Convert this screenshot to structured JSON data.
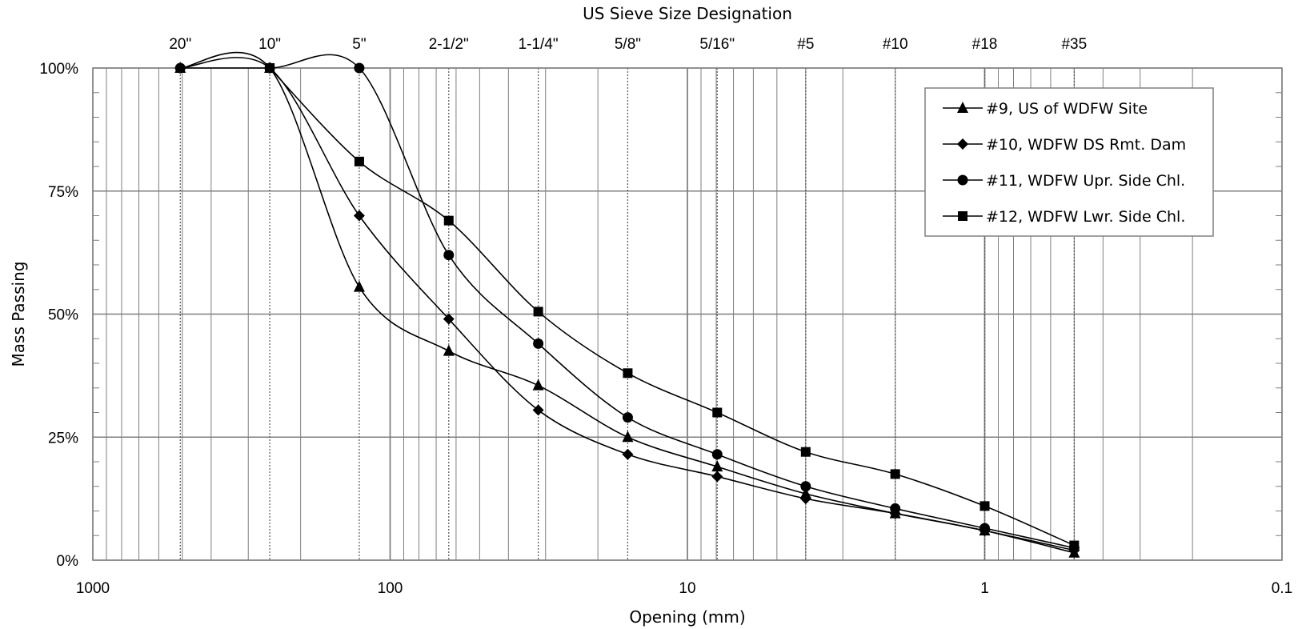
{
  "chart_data": {
    "type": "line",
    "x_scale": "log",
    "x_reversed": true,
    "xlim": [
      1000,
      0.1
    ],
    "ylim": [
      0,
      100
    ],
    "xlabel": "Opening (mm)",
    "ylabel": "Mass Passing",
    "x2label": "US Sieve Size Designation",
    "x_ticks": [
      {
        "value": 1000,
        "label": "1000"
      },
      {
        "value": 100,
        "label": "100"
      },
      {
        "value": 10,
        "label": "10"
      },
      {
        "value": 1,
        "label": "1"
      },
      {
        "value": 0.1,
        "label": "0.1"
      }
    ],
    "y_ticks": [
      {
        "value": 0,
        "label": "0%"
      },
      {
        "value": 25,
        "label": "25%"
      },
      {
        "value": 50,
        "label": "50%"
      },
      {
        "value": 75,
        "label": "75%"
      },
      {
        "value": 100,
        "label": "100%"
      }
    ],
    "sieves": [
      {
        "label": "20\"",
        "opening": 508
      },
      {
        "label": "10\"",
        "opening": 254
      },
      {
        "label": "5\"",
        "opening": 127
      },
      {
        "label": "2-1/2\"",
        "opening": 63.5
      },
      {
        "label": "1-1/4\"",
        "opening": 31.75
      },
      {
        "label": "5/8\"",
        "opening": 15.875
      },
      {
        "label": "5/16\"",
        "opening": 7.9375
      },
      {
        "label": "#5",
        "opening": 4
      },
      {
        "label": "#10",
        "opening": 2
      },
      {
        "label": "#18",
        "opening": 1
      },
      {
        "label": "#35",
        "opening": 0.5
      }
    ],
    "grid": true,
    "legend_position": "top-right",
    "series": [
      {
        "name": "#9, US of WDFW Site",
        "marker": "triangle",
        "x": [
          508,
          254,
          127,
          63.5,
          31.75,
          15.875,
          7.9375,
          4,
          2,
          1,
          0.5
        ],
        "y": [
          100,
          100,
          55.5,
          42.5,
          35.5,
          25,
          19,
          13.5,
          9.5,
          6,
          1.5
        ]
      },
      {
        "name": "#10, WDFW DS Rmt. Dam",
        "marker": "diamond",
        "x": [
          508,
          254,
          127,
          63.5,
          31.75,
          15.875,
          7.9375,
          4,
          2,
          1,
          0.5
        ],
        "y": [
          100,
          100,
          70,
          49,
          30.5,
          21.5,
          17,
          12.5,
          9.5,
          6,
          2
        ]
      },
      {
        "name": "#11, WDFW Upr. Side Chl.",
        "marker": "circle",
        "x": [
          508,
          254,
          127,
          63.5,
          31.75,
          15.875,
          7.9375,
          4,
          2,
          1,
          0.5
        ],
        "y": [
          100,
          100,
          100,
          62,
          44,
          29,
          21.5,
          15,
          10.5,
          6.5,
          2.5
        ]
      },
      {
        "name": "#12, WDFW Lwr. Side Chl.",
        "marker": "square",
        "x": [
          254,
          127,
          63.5,
          31.75,
          15.875,
          7.9375,
          4,
          2,
          1,
          0.5
        ],
        "y": [
          100,
          81,
          69,
          50.5,
          38,
          30,
          22,
          17.5,
          11,
          3
        ]
      }
    ]
  }
}
